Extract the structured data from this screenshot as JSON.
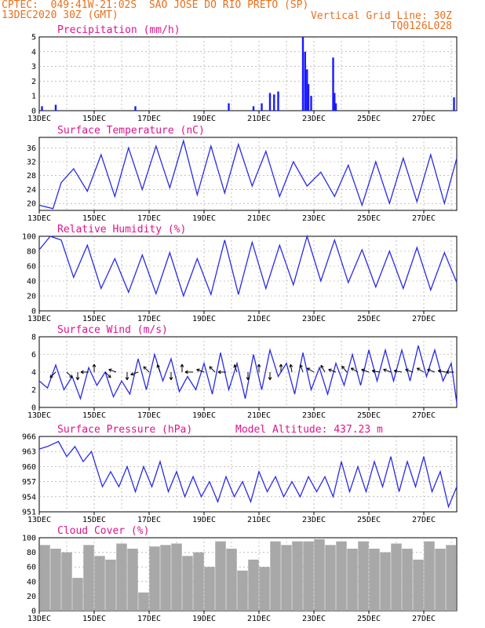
{
  "header": {
    "line1": "CPTEC:  049:41W-21:02S  SAO JOSE DO RIO PRETO (SP)",
    "line2": "13DEC2020 30Z (GMT)",
    "grid_note": "Vertical Grid Line: 30Z",
    "code": "TQ0126L028"
  },
  "colors": {
    "header": "#e8701e",
    "title": "#e0138c",
    "line": "#2a2ae8",
    "bar": "#1a1aff",
    "cloud": "#a8a8a8",
    "grid": "#9a9a9a"
  },
  "chart_data": [
    {
      "type": "bar",
      "title": "Precipitation (mm/h)",
      "ylim": [
        0,
        5
      ],
      "yticks": [
        0,
        1,
        2,
        3,
        4,
        5
      ],
      "x_range_days": [
        13,
        28.2
      ],
      "xticks": [
        "13DEC",
        "15DEC",
        "17DEC",
        "19DEC",
        "21DEC",
        "23DEC",
        "25DEC",
        "27DEC"
      ],
      "x_day": [
        13.1,
        13.6,
        16.5,
        19.9,
        20.8,
        21.1,
        21.4,
        21.55,
        21.7,
        22.6,
        22.68,
        22.75,
        22.8,
        22.9,
        23.7,
        23.75,
        23.8,
        28.1
      ],
      "values": [
        0.3,
        0.4,
        0.3,
        0.5,
        0.3,
        0.5,
        1.2,
        1.1,
        1.3,
        5.0,
        4.0,
        2.8,
        1.8,
        1.0,
        3.6,
        1.2,
        0.5,
        0.9
      ]
    },
    {
      "type": "line",
      "title": "Surface Temperature (nC)",
      "ylim": [
        18,
        39
      ],
      "yticks": [
        20,
        24,
        28,
        32,
        36
      ],
      "xticks": [
        "13DEC",
        "15DEC",
        "17DEC",
        "19DEC",
        "21DEC",
        "23DEC",
        "25DEC",
        "27DEC"
      ],
      "x_day": [
        13.0,
        13.5,
        13.8,
        14.25,
        14.75,
        15.25,
        15.75,
        16.25,
        16.75,
        17.25,
        17.75,
        18.25,
        18.75,
        19.25,
        19.75,
        20.25,
        20.75,
        21.25,
        21.75,
        22.25,
        22.75,
        23.25,
        23.75,
        24.25,
        24.75,
        25.25,
        25.75,
        26.25,
        26.75,
        27.25,
        27.75,
        28.2
      ],
      "values": [
        19.5,
        18.5,
        26.0,
        30.0,
        23.5,
        34.0,
        22.0,
        36.0,
        24.0,
        36.5,
        24.5,
        38.0,
        22.5,
        36.5,
        23.0,
        37.0,
        25.0,
        35.0,
        22.0,
        32.0,
        25.0,
        29.0,
        22.0,
        31.0,
        19.5,
        32.0,
        20.0,
        33.0,
        20.5,
        34.0,
        20.0,
        33.0
      ]
    },
    {
      "type": "line",
      "title": "Relative Humidity (%)",
      "ylim": [
        0,
        100
      ],
      "yticks": [
        0,
        20,
        40,
        60,
        80,
        100
      ],
      "xticks": [
        "13DEC",
        "15DEC",
        "17DEC",
        "19DEC",
        "21DEC",
        "23DEC",
        "25DEC",
        "27DEC"
      ],
      "x_day": [
        13.0,
        13.4,
        13.8,
        14.25,
        14.75,
        15.25,
        15.75,
        16.25,
        16.75,
        17.25,
        17.75,
        18.25,
        18.75,
        19.25,
        19.75,
        20.25,
        20.75,
        21.25,
        21.75,
        22.25,
        22.75,
        23.25,
        23.75,
        24.25,
        24.75,
        25.25,
        25.75,
        26.25,
        26.75,
        27.25,
        27.75,
        28.2
      ],
      "values": [
        82,
        100,
        95,
        45,
        88,
        30,
        70,
        25,
        75,
        23,
        78,
        20,
        70,
        22,
        95,
        22,
        92,
        30,
        88,
        35,
        100,
        40,
        95,
        38,
        82,
        32,
        80,
        30,
        85,
        28,
        78,
        38
      ]
    },
    {
      "type": "line",
      "title": "Surface Wind (m/s)",
      "ylim": [
        0,
        8
      ],
      "yticks": [
        0,
        2,
        4,
        6,
        8
      ],
      "xticks": [
        "13DEC",
        "15DEC",
        "17DEC",
        "19DEC",
        "21DEC",
        "23DEC",
        "25DEC",
        "27DEC"
      ],
      "x_day": [
        13.0,
        13.3,
        13.6,
        13.9,
        14.2,
        14.5,
        14.8,
        15.1,
        15.4,
        15.7,
        16.0,
        16.3,
        16.6,
        16.9,
        17.2,
        17.5,
        17.8,
        18.1,
        18.4,
        18.7,
        19.0,
        19.3,
        19.6,
        19.9,
        20.2,
        20.5,
        20.8,
        21.1,
        21.4,
        21.7,
        22.0,
        22.3,
        22.6,
        22.9,
        23.2,
        23.5,
        23.8,
        24.1,
        24.4,
        24.7,
        25.0,
        25.3,
        25.6,
        25.9,
        26.2,
        26.5,
        26.8,
        27.1,
        27.4,
        27.7,
        28.0,
        28.2
      ],
      "values": [
        3.0,
        2.2,
        4.8,
        2.0,
        3.5,
        1.0,
        4.5,
        2.5,
        4.0,
        1.2,
        3.0,
        1.5,
        5.5,
        2.0,
        6.0,
        3.0,
        5.5,
        1.8,
        3.5,
        2.0,
        5.0,
        1.5,
        6.2,
        2.0,
        5.0,
        1.0,
        6.0,
        2.0,
        6.5,
        3.5,
        5.0,
        1.5,
        6.2,
        2.0,
        4.5,
        1.5,
        5.0,
        2.5,
        6.0,
        2.5,
        6.5,
        3.0,
        6.5,
        3.0,
        6.5,
        3.0,
        7.0,
        3.5,
        6.5,
        3.0,
        5.0,
        0.5
      ],
      "arrows_x_day": [
        13.6,
        14.0,
        14.4,
        14.8,
        15.0,
        15.4,
        15.8,
        16.2,
        16.6,
        17.0,
        17.4,
        17.8,
        18.2,
        18.6,
        19.0,
        19.4,
        19.8,
        20.2,
        20.6,
        21.0,
        21.4,
        21.8,
        22.2,
        22.6,
        23.0,
        23.4,
        23.8,
        24.2,
        24.6,
        25.0,
        25.4,
        25.8,
        26.2,
        26.6,
        27.0,
        27.4,
        27.8,
        28.1
      ],
      "arrows_dir_deg": [
        135,
        45,
        90,
        180,
        270,
        45,
        200,
        90,
        160,
        225,
        250,
        90,
        270,
        180,
        200,
        225,
        180,
        250,
        90,
        270,
        90,
        270,
        260,
        250,
        210,
        240,
        200,
        230,
        210,
        200,
        190,
        200,
        190,
        200,
        210,
        200,
        190,
        180
      ]
    },
    {
      "type": "line",
      "title": "Surface Pressure (hPa)",
      "annotation": "Model Altitude: 437.23 m",
      "ylim": [
        951,
        966
      ],
      "yticks": [
        951,
        954,
        957,
        960,
        963,
        966
      ],
      "xticks": [
        "13DEC",
        "15DEC",
        "17DEC",
        "19DEC",
        "21DEC",
        "23DEC",
        "25DEC",
        "27DEC"
      ],
      "x_day": [
        13.0,
        13.3,
        13.7,
        14.0,
        14.3,
        14.6,
        14.9,
        15.3,
        15.6,
        15.9,
        16.2,
        16.5,
        16.8,
        17.1,
        17.4,
        17.7,
        18.0,
        18.3,
        18.6,
        18.9,
        19.2,
        19.5,
        19.8,
        20.1,
        20.4,
        20.7,
        21.0,
        21.3,
        21.6,
        21.9,
        22.2,
        22.5,
        22.8,
        23.1,
        23.4,
        23.7,
        24.0,
        24.3,
        24.6,
        24.9,
        25.2,
        25.5,
        25.8,
        26.1,
        26.4,
        26.7,
        27.0,
        27.3,
        27.6,
        27.9,
        28.2
      ],
      "values": [
        963.5,
        964,
        965,
        962,
        964,
        961,
        963,
        956,
        959,
        956,
        960,
        955,
        960,
        956,
        961,
        955,
        959,
        954,
        958,
        954,
        957,
        953,
        958,
        954,
        957,
        953,
        959,
        955,
        958,
        954,
        957,
        954,
        958,
        955,
        958,
        954,
        961,
        955,
        960,
        955,
        961,
        956,
        962,
        955,
        961,
        956,
        962,
        955,
        959,
        952,
        956
      ]
    },
    {
      "type": "bar",
      "title": "Cloud Cover (%)",
      "ylim": [
        0,
        100
      ],
      "yticks": [
        0,
        20,
        40,
        60,
        80,
        100
      ],
      "xticks": [
        "13DEC",
        "15DEC",
        "17DEC",
        "19DEC",
        "21DEC",
        "23DEC",
        "25DEC",
        "27DEC"
      ],
      "x_day": [
        13.2,
        13.6,
        14.0,
        14.4,
        14.8,
        15.2,
        15.6,
        16.0,
        16.4,
        16.8,
        17.2,
        17.6,
        18.0,
        18.4,
        18.8,
        19.2,
        19.6,
        20.0,
        20.4,
        20.8,
        21.2,
        21.6,
        22.0,
        22.4,
        22.8,
        23.2,
        23.6,
        24.0,
        24.4,
        24.8,
        25.2,
        25.6,
        26.0,
        26.4,
        26.8,
        27.2,
        27.6,
        28.0
      ],
      "values": [
        90,
        85,
        80,
        45,
        90,
        75,
        70,
        92,
        85,
        25,
        88,
        90,
        92,
        75,
        80,
        60,
        95,
        85,
        55,
        70,
        60,
        95,
        90,
        95,
        95,
        98,
        90,
        95,
        85,
        95,
        85,
        80,
        92,
        85,
        70,
        95,
        85,
        90
      ]
    }
  ]
}
